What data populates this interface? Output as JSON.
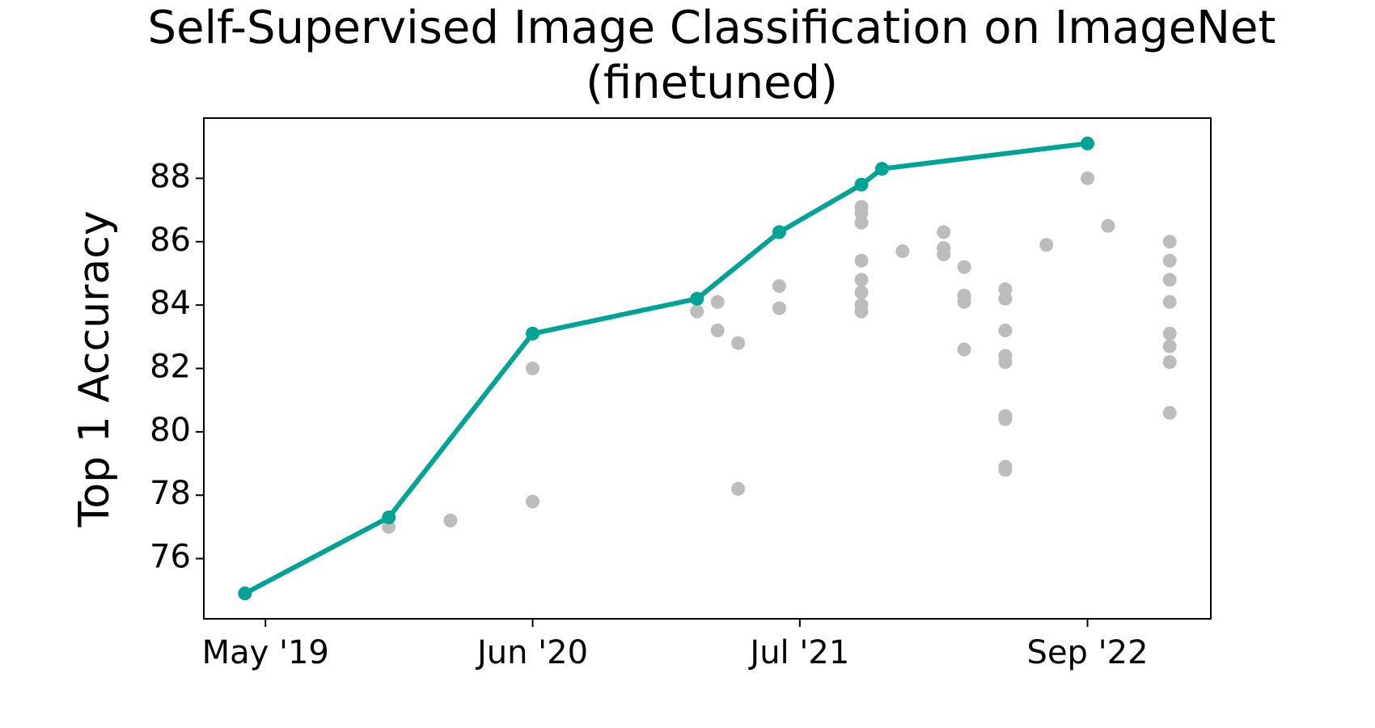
{
  "chart_data": {
    "type": "line",
    "title": [
      "Self-Supervised Image Classification on ImageNet",
      "(finetuned)"
    ],
    "y_label": "Top 1 Accuracy",
    "series": [
      {
        "color": "#bcbcbc",
        "marker_only": true,
        "x": [
          "2019-11",
          "2020-02",
          "2020-06",
          "2020-06",
          "2021-02",
          "2021-03",
          "2021-03",
          "2021-04",
          "2021-04",
          "2021-06",
          "2021-06",
          "2021-10",
          "2021-10",
          "2021-10",
          "2021-10",
          "2021-10",
          "2021-10",
          "2021-10",
          "2021-10",
          "2021-12",
          "2022-02",
          "2022-02",
          "2022-02",
          "2022-03",
          "2022-03",
          "2022-03",
          "2022-03",
          "2022-05",
          "2022-05",
          "2022-05",
          "2022-05",
          "2022-05",
          "2022-05",
          "2022-05",
          "2022-05",
          "2022-05",
          "2022-07",
          "2022-09",
          "2022-10",
          "2023-01",
          "2023-01",
          "2023-01",
          "2023-01",
          "2023-01",
          "2023-01",
          "2023-01",
          "2023-01"
        ],
        "values": [
          77.0,
          77.2,
          82.0,
          77.8,
          83.8,
          84.1,
          83.2,
          82.8,
          78.2,
          84.6,
          83.9,
          86.9,
          87.1,
          86.6,
          85.4,
          84.8,
          84.4,
          84.0,
          83.8,
          85.7,
          86.3,
          85.6,
          85.8,
          85.2,
          84.3,
          84.1,
          82.6,
          83.2,
          84.5,
          84.2,
          82.4,
          82.2,
          80.5,
          80.4,
          78.9,
          78.8,
          85.9,
          88.0,
          86.5,
          86.0,
          85.4,
          84.8,
          84.1,
          83.1,
          82.7,
          82.2,
          80.6
        ]
      },
      {
        "color": "#00a396",
        "x": [
          "2019-04",
          "2019-11",
          "2020-06",
          "2021-02",
          "2021-06",
          "2021-10",
          "2021-11",
          "2022-09"
        ],
        "values": [
          74.9,
          77.3,
          83.1,
          84.2,
          86.3,
          87.8,
          88.3,
          89.1
        ]
      }
    ],
    "xlim": [
      "2019-02",
      "2023-03"
    ],
    "xticks": [
      {
        "value": "2019-05",
        "label": "May '19"
      },
      {
        "value": "2020-06",
        "label": "Jun '20"
      },
      {
        "value": "2021-07",
        "label": "Jul '21"
      },
      {
        "value": "2022-09",
        "label": "Sep '22"
      }
    ],
    "ylim": [
      74.1,
      89.9
    ],
    "yticks": [
      76,
      78,
      80,
      82,
      84,
      86,
      88
    ],
    "grid": false
  }
}
